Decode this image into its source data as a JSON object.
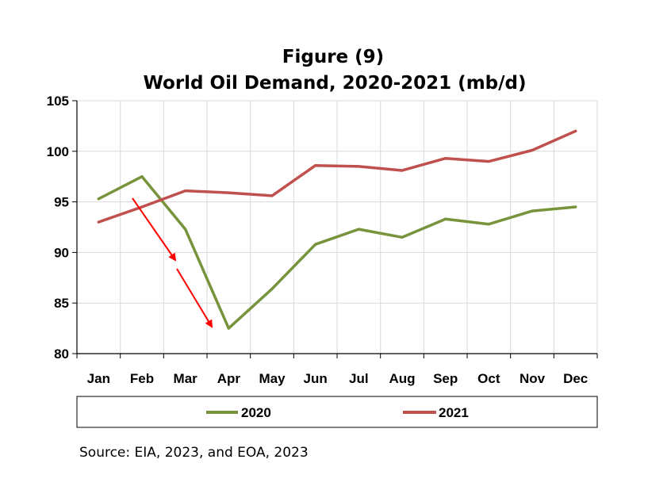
{
  "chart_data": {
    "type": "line",
    "title_line1": "Figure (9)",
    "title_line2": "World Oil Demand, 2020-2021 (mb/d)",
    "categories": [
      "Jan",
      "Feb",
      "Mar",
      "Apr",
      "May",
      "Jun",
      "Jul",
      "Aug",
      "Sep",
      "Oct",
      "Nov",
      "Dec"
    ],
    "ylim": [
      80,
      105
    ],
    "yticks": [
      "80",
      "85",
      "90",
      "95",
      "100",
      "105"
    ],
    "grid": true,
    "legend_position": "bottom",
    "series": [
      {
        "name": "2020",
        "color": "#77933c",
        "values": [
          95.3,
          97.5,
          92.3,
          82.5,
          86.4,
          90.8,
          92.3,
          91.5,
          93.3,
          92.8,
          94.1,
          94.5
        ]
      },
      {
        "name": "2021",
        "color": "#c0504d",
        "values": [
          93.0,
          94.5,
          96.1,
          95.9,
          95.6,
          98.6,
          98.5,
          98.1,
          99.3,
          99.0,
          100.1,
          102.0
        ]
      }
    ],
    "annotation_arrow_color": "#ff0000",
    "source": "Source: EIA, 2023, and EOA, 2023"
  }
}
